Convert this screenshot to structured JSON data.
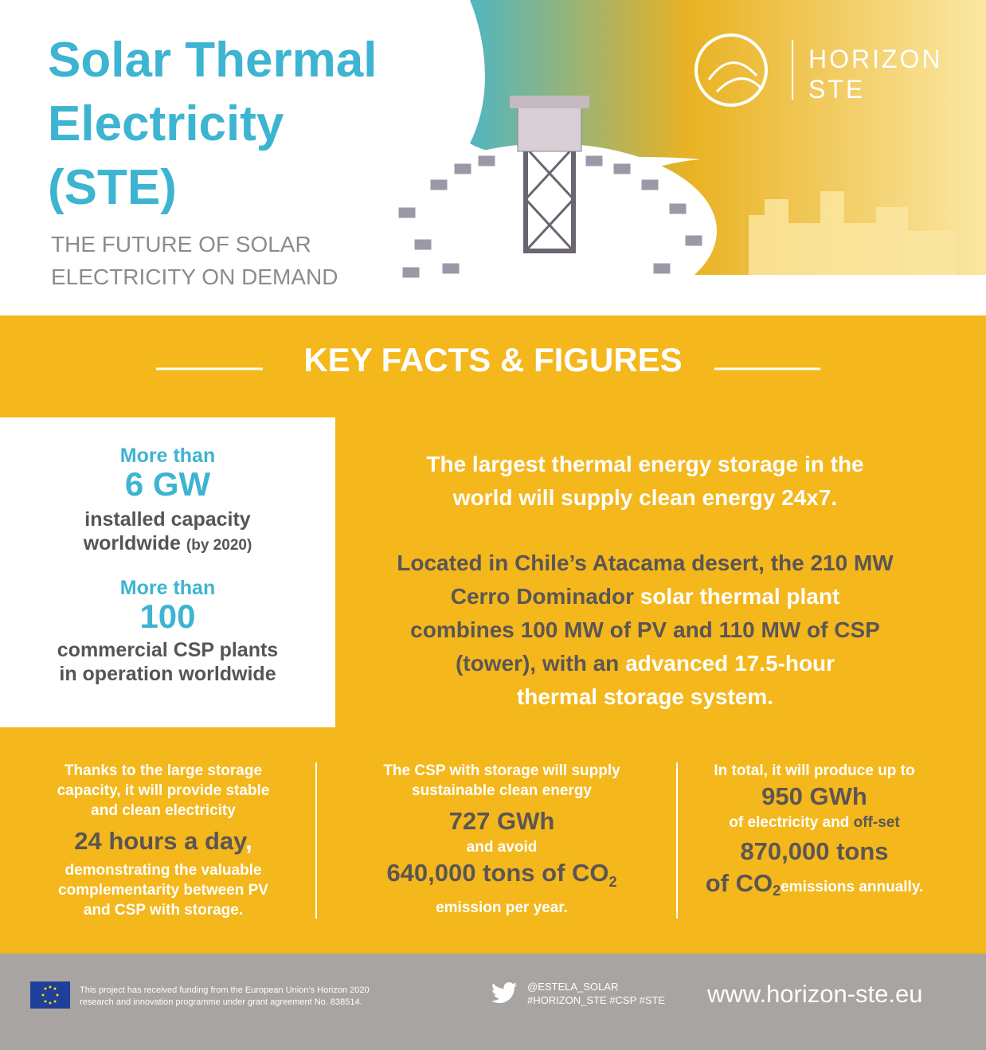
{
  "header": {
    "title_lines": [
      "Solar Thermal",
      "Electricity",
      "(STE)"
    ],
    "subtitle_lines": [
      "THE FUTURE OF SOLAR",
      "ELECTRICITY ON DEMAND"
    ],
    "logo": [
      "HORIZON",
      "STE"
    ]
  },
  "section_title": "KEY FACTS & FIGURES",
  "facts": [
    {
      "lead": "More than",
      "figure": "6 GW",
      "lines": [
        "installed capacity",
        "worldwide"
      ],
      "note": "(by 2020)"
    },
    {
      "lead": "More than",
      "figure": "100",
      "lines": [
        "commercial CSP plants",
        "in operation worldwide"
      ]
    }
  ],
  "highlight": [
    "The largest thermal energy storage in the",
    "world will supply clean energy 24x7."
  ],
  "description": [
    [
      "Located in Chile’s Atacama desert, the 210 MW"
    ],
    [
      "Cerro Dominador",
      "solar thermal plant"
    ],
    [
      "combines 100 MW of PV and 110 MW of CSP"
    ],
    [
      "(tower), with an",
      "advanced 17.5-hour"
    ],
    [
      "thermal storage system."
    ]
  ],
  "columns": [
    {
      "intro": [
        "Thanks to the large storage",
        "capacity, it will provide stable",
        "and clean electricity"
      ],
      "figure": "24 hours a day",
      "comma": ",",
      "outro": [
        "demonstrating the valuable",
        "complementarity between PV",
        "and CSP with storage."
      ]
    },
    {
      "intro": [
        "The CSP with storage will supply",
        "sustainable clean energy"
      ],
      "figure": "727 GWh",
      "middle": "and avoid",
      "figure2": "640,000 tons of CO",
      "sub": "2",
      "outro": [
        "emission per year."
      ]
    },
    {
      "intro": [
        "In total, it will produce up to"
      ],
      "figure": "950 GWh",
      "middle": [
        "of electricity and",
        "off-set"
      ],
      "figure2": "870,000 tons",
      "figure3": "of CO",
      "sub": "2",
      "outro": [
        "emissions annually."
      ]
    }
  ],
  "footer": {
    "funding": [
      "This project has received funding from the European Union’s Horizon 2020",
      "research and innovation programme under grant agreement No. 838514."
    ],
    "social": [
      "@ESTELA_SOLAR",
      "#HORIZON_STE #CSP #STE"
    ],
    "website": "www.horizon-ste.eu"
  }
}
